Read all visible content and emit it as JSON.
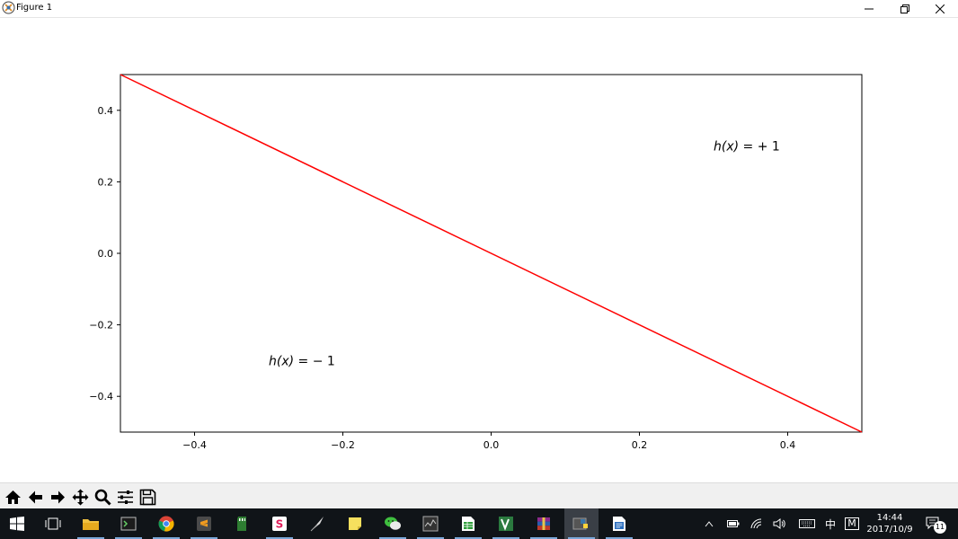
{
  "window": {
    "title": "Figure 1",
    "minimize_icon": "minimize-icon",
    "restore_icon": "restore-icon",
    "close_icon": "close-icon"
  },
  "chart_data": {
    "type": "line",
    "title": "",
    "xlabel": "",
    "ylabel": "",
    "xlim": [
      -0.5,
      0.5
    ],
    "ylim": [
      -0.5,
      0.5
    ],
    "xticks": [
      -0.4,
      -0.2,
      0.0,
      0.2,
      0.4
    ],
    "xtick_labels": [
      "−0.4",
      "−0.2",
      "0.0",
      "0.2",
      "0.4"
    ],
    "yticks": [
      0.4,
      0.2,
      0.0,
      -0.2,
      -0.4
    ],
    "ytick_labels": [
      "0.4",
      "0.2",
      "0.0",
      "−0.2",
      "−0.4"
    ],
    "grid": false,
    "series": [
      {
        "x": [
          -0.5,
          0.5
        ],
        "y": [
          0.5,
          -0.5
        ],
        "color": "#ff0000"
      }
    ],
    "annotations": [
      {
        "text_func": "h(x)",
        "text_rest": " = + 1",
        "x": 0.3,
        "y": 0.3
      },
      {
        "text_func": "h(x)",
        "text_rest": " = − 1",
        "x": -0.3,
        "y": -0.3
      }
    ]
  },
  "toolbar": {
    "buttons": [
      "home-icon",
      "back-icon",
      "forward-icon",
      "pan-icon",
      "zoom-icon",
      "configure-icon",
      "save-icon"
    ]
  },
  "taskbar": {
    "apps": [
      "start-icon",
      "task-view-icon",
      "file-explorer-icon",
      "terminal-icon",
      "chrome-icon",
      "sublime-icon",
      "sd-card-icon",
      "slack-icon",
      "quill-icon",
      "sticky-notes-icon",
      "wechat-icon",
      "monitor-icon",
      "spreadsheet-icon",
      "visio-icon",
      "winrar-icon",
      "python-icon",
      "writer-icon"
    ],
    "tray": {
      "ime": "中",
      "ime2": "M",
      "time": "14:44",
      "date": "2017/10/9",
      "notifications": "11"
    }
  }
}
